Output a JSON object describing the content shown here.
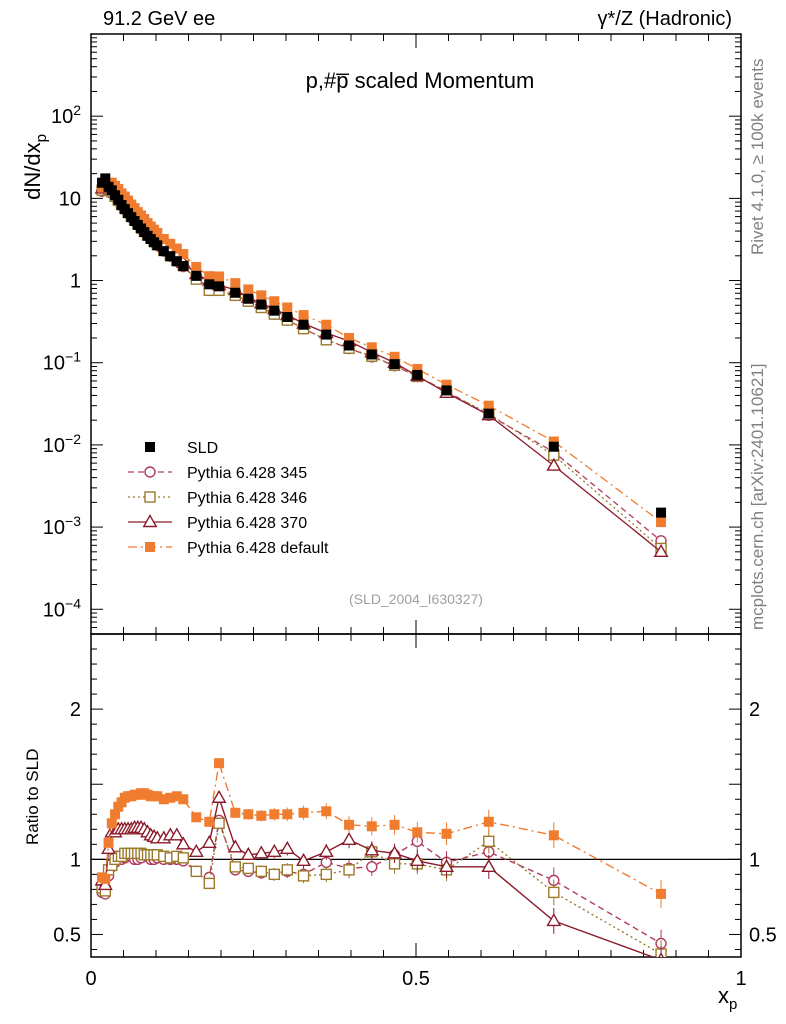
{
  "header": {
    "left": "91.2 GeV ee",
    "right": "γ*/Z (Hadronic)"
  },
  "side_labels": {
    "rivet": "Rivet 4.1.0, ≥ 100k events",
    "mcplots": "mcplots.cern.ch [arXiv:2401.10621]"
  },
  "chart_data": [
    {
      "panel": "main",
      "type": "scatter",
      "title": "p,#p̅ scaled Momentum",
      "ylabel": "dN/dx",
      "ylabel_sub": "p",
      "yscale": "log",
      "ylim": [
        5e-05,
        1000
      ],
      "xlim": [
        0,
        1
      ],
      "ytick_labels": [
        {
          "v": 100,
          "b": "10",
          "e": "2"
        },
        {
          "v": 10,
          "b": "10",
          "e": ""
        },
        {
          "v": 1,
          "b": "1",
          "e": ""
        },
        {
          "v": 0.1,
          "b": "10",
          "e": "−1"
        },
        {
          "v": 0.01,
          "b": "10",
          "e": "−2"
        },
        {
          "v": 0.001,
          "b": "10",
          "e": "−3"
        },
        {
          "v": 0.0001,
          "b": "10",
          "e": "−4"
        }
      ],
      "watermark": "(SLD_2004_I630327)",
      "legend": [
        "SLD",
        "Pythia 6.428 345",
        "Pythia 6.428 346",
        "Pythia 6.428 370",
        "Pythia 6.428 default"
      ],
      "x": [
        0.017,
        0.022,
        0.027,
        0.032,
        0.037,
        0.042,
        0.047,
        0.052,
        0.057,
        0.062,
        0.067,
        0.072,
        0.077,
        0.082,
        0.087,
        0.092,
        0.097,
        0.102,
        0.112,
        0.122,
        0.132,
        0.142,
        0.162,
        0.182,
        0.197,
        0.222,
        0.242,
        0.262,
        0.282,
        0.302,
        0.327,
        0.362,
        0.397,
        0.432,
        0.467,
        0.502,
        0.547,
        0.612,
        0.712,
        0.877
      ],
      "series": [
        {
          "name": "SLD",
          "values": [
            15.5,
            17.5,
            13.8,
            12.5,
            10.9,
            9.6,
            8.3,
            7.4,
            6.6,
            5.9,
            5.3,
            4.75,
            4.3,
            3.88,
            3.5,
            3.2,
            2.92,
            2.68,
            2.28,
            1.98,
            1.72,
            1.5,
            1.14,
            0.9,
            0.85,
            0.71,
            0.6,
            0.51,
            0.43,
            0.36,
            0.29,
            0.22,
            0.162,
            0.126,
            0.096,
            0.071,
            0.046,
            0.024,
            0.0095,
            0.0015
          ]
        },
        {
          "name": "Pythia 6.428 345",
          "values": [
            12.2,
            13.5,
            12.3,
            11.5,
            10.3,
            9.2,
            8.1,
            7.3,
            6.6,
            5.9,
            5.3,
            4.75,
            4.3,
            3.9,
            3.52,
            3.21,
            2.93,
            2.7,
            2.28,
            1.97,
            1.72,
            1.48,
            1.05,
            0.82,
            0.79,
            0.66,
            0.56,
            0.47,
            0.39,
            0.33,
            0.26,
            0.19,
            0.149,
            0.118,
            0.092,
            0.068,
            0.045,
            0.023,
            0.0082,
            0.00068
          ]
        },
        {
          "name": "Pythia 6.428 346",
          "values": [
            12.6,
            13.8,
            12.8,
            12.0,
            10.6,
            9.5,
            8.4,
            7.6,
            6.8,
            6.1,
            5.5,
            4.95,
            4.45,
            4.0,
            3.6,
            3.3,
            3.0,
            2.75,
            2.33,
            2.0,
            1.75,
            1.52,
            1.04,
            0.76,
            0.76,
            0.66,
            0.56,
            0.47,
            0.39,
            0.33,
            0.26,
            0.19,
            0.15,
            0.12,
            0.093,
            0.068,
            0.044,
            0.024,
            0.0075,
            0.00055
          ]
        },
        {
          "name": "Pythia 6.428 370",
          "values": [
            13.2,
            14.5,
            15.0,
            14.2,
            13.0,
            11.5,
            10.0,
            9.0,
            8.0,
            7.1,
            6.4,
            5.8,
            5.2,
            4.6,
            4.1,
            3.7,
            3.35,
            3.05,
            2.6,
            2.3,
            2.0,
            1.65,
            1.2,
            1.0,
            0.88,
            0.77,
            0.62,
            0.53,
            0.45,
            0.38,
            0.3,
            0.23,
            0.183,
            0.134,
            0.1,
            0.069,
            0.043,
            0.023,
            0.0056,
            0.0005
          ]
        },
        {
          "name": "Pythia 6.428 default",
          "values": [
            13.6,
            15.2,
            15.5,
            15.5,
            14.2,
            13.0,
            11.5,
            10.5,
            9.4,
            8.4,
            7.6,
            6.8,
            6.2,
            5.6,
            5.0,
            4.55,
            4.15,
            3.8,
            3.2,
            2.8,
            2.45,
            2.1,
            1.46,
            1.13,
            1.12,
            0.93,
            0.78,
            0.66,
            0.56,
            0.47,
            0.38,
            0.29,
            0.2,
            0.154,
            0.118,
            0.084,
            0.054,
            0.03,
            0.011,
            0.00115
          ]
        }
      ]
    },
    {
      "panel": "ratio",
      "type": "line",
      "ylabel": "Ratio to SLD",
      "xlabel": "x",
      "xlabel_sub": "p",
      "ylim": [
        0.35,
        2.5
      ],
      "xlim": [
        0,
        1
      ],
      "reference_line": 1,
      "ytick_labels": [
        {
          "v": 0.5,
          "t": "0.5"
        },
        {
          "v": 1,
          "t": "1"
        },
        {
          "v": 2,
          "t": "2"
        }
      ],
      "xtick_labels": [
        {
          "v": 0,
          "t": "0"
        },
        {
          "v": 0.5,
          "t": "0.5"
        },
        {
          "v": 1,
          "t": "1"
        }
      ],
      "x": [
        0.017,
        0.022,
        0.027,
        0.032,
        0.037,
        0.042,
        0.047,
        0.052,
        0.057,
        0.062,
        0.067,
        0.072,
        0.077,
        0.082,
        0.087,
        0.092,
        0.097,
        0.102,
        0.112,
        0.122,
        0.132,
        0.142,
        0.162,
        0.182,
        0.197,
        0.222,
        0.242,
        0.262,
        0.282,
        0.302,
        0.327,
        0.362,
        0.397,
        0.432,
        0.467,
        0.502,
        0.547,
        0.612,
        0.712,
        0.877
      ],
      "series": [
        {
          "name": "Pythia 6.428 345",
          "values": [
            0.78,
            0.77,
            0.89,
            0.95,
            0.98,
            1.0,
            1.0,
            1.01,
            1.03,
            1.02,
            1.0,
            1.0,
            1.01,
            1.03,
            1.02,
            1.0,
            1.0,
            1.01,
            1.0,
            1.0,
            1.0,
            0.99,
            0.92,
            0.88,
            1.26,
            0.93,
            0.92,
            0.91,
            0.9,
            0.92,
            0.9,
            0.98,
            0.94,
            0.95,
            1.03,
            1.12,
            0.98,
            1.05,
            0.86,
            0.44
          ]
        },
        {
          "name": "Pythia 6.428 346",
          "values": [
            0.81,
            0.79,
            0.93,
            0.96,
            1.0,
            1.02,
            1.02,
            1.04,
            1.04,
            1.04,
            1.04,
            1.04,
            1.04,
            1.03,
            1.03,
            1.03,
            1.03,
            1.03,
            1.02,
            1.01,
            1.02,
            1.01,
            0.92,
            0.84,
            1.24,
            0.95,
            0.94,
            0.92,
            0.9,
            0.93,
            0.89,
            0.9,
            0.93,
            1.05,
            0.97,
            0.97,
            0.93,
            1.12,
            0.78,
            0.37
          ]
        },
        {
          "name": "Pythia 6.428 370",
          "values": [
            0.86,
            0.83,
            1.07,
            1.18,
            1.18,
            1.2,
            1.2,
            1.2,
            1.2,
            1.2,
            1.21,
            1.21,
            1.21,
            1.2,
            1.18,
            1.16,
            1.15,
            1.14,
            1.14,
            1.16,
            1.16,
            1.1,
            1.05,
            1.11,
            1.41,
            1.08,
            1.03,
            1.04,
            1.05,
            1.07,
            0.99,
            1.05,
            1.13,
            1.06,
            1.04,
            0.99,
            0.95,
            0.95,
            0.59,
            0.33
          ]
        },
        {
          "name": "Pythia 6.428 default",
          "values": [
            0.88,
            0.87,
            1.11,
            1.24,
            1.3,
            1.35,
            1.38,
            1.41,
            1.42,
            1.42,
            1.43,
            1.43,
            1.44,
            1.44,
            1.43,
            1.42,
            1.42,
            1.42,
            1.4,
            1.41,
            1.42,
            1.4,
            1.28,
            1.25,
            1.64,
            1.31,
            1.3,
            1.29,
            1.3,
            1.3,
            1.31,
            1.32,
            1.23,
            1.22,
            1.23,
            1.18,
            1.17,
            1.25,
            1.16,
            0.77
          ]
        }
      ]
    }
  ],
  "styles": {
    "sld_color": "#000000",
    "colors": {
      "Pythia 6.428 345": "#b23a5e",
      "Pythia 6.428 346": "#9b7a2c",
      "Pythia 6.428 370": "#8b1a2a",
      "Pythia 6.428 default": "#f07c30"
    },
    "markers": {
      "Pythia 6.428 345": "circle",
      "Pythia 6.428 346": "square-open",
      "Pythia 6.428 370": "triangle",
      "Pythia 6.428 default": "square-filled"
    },
    "dashes": {
      "Pythia 6.428 345": "6,4",
      "Pythia 6.428 346": "2,3",
      "Pythia 6.428 370": "",
      "Pythia 6.428 default": "9,4,2,4"
    }
  }
}
